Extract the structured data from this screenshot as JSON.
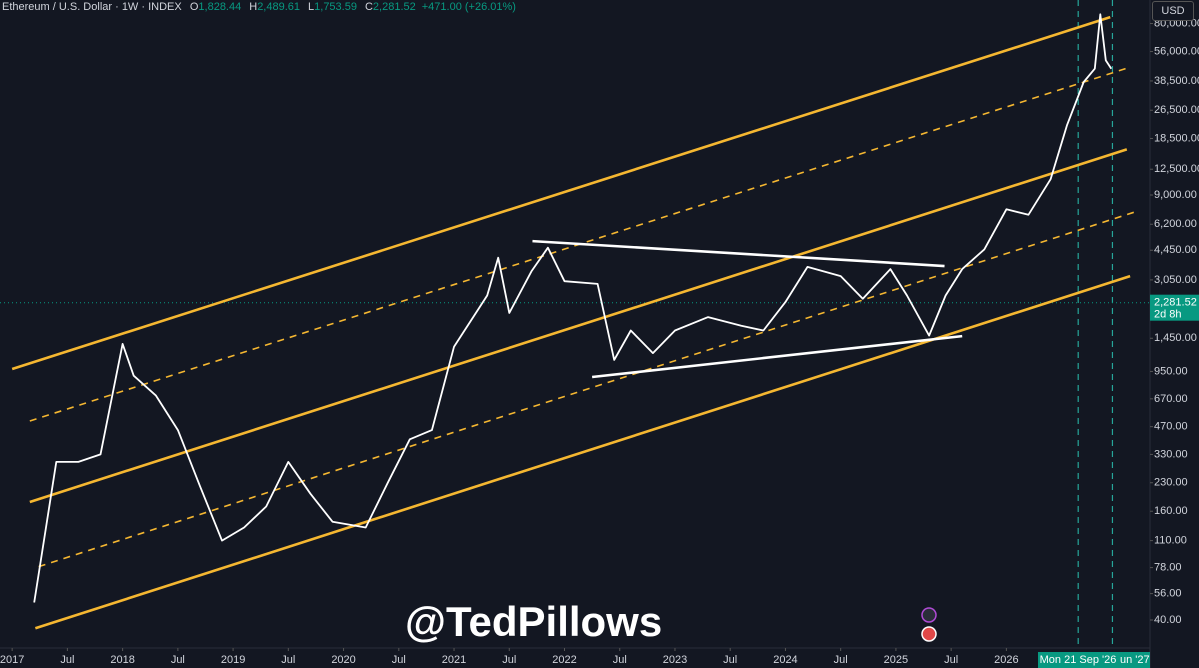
{
  "header": {
    "symbol": "Ethereum / U.S. Dollar · 1W · INDEX",
    "ohlc": [
      {
        "key": "O",
        "value": "1,828.44"
      },
      {
        "key": "H",
        "value": "2,489.61"
      },
      {
        "key": "L",
        "value": "1,753.59"
      },
      {
        "key": "C",
        "value": "2,281.52"
      }
    ],
    "change": "+471.00 (+26.01%)",
    "currency": "USD"
  },
  "watermark": "@TedPillows",
  "chart_data": {
    "type": "line",
    "log_scale": true,
    "ylim": [
      28,
      108000
    ],
    "yticks": [
      {
        "value": 40,
        "label": "40.00"
      },
      {
        "value": 56,
        "label": "56.00"
      },
      {
        "value": 78,
        "label": "78.00"
      },
      {
        "value": 110,
        "label": "110.00"
      },
      {
        "value": 160,
        "label": "160.00"
      },
      {
        "value": 230,
        "label": "230.00"
      },
      {
        "value": 330,
        "label": "330.00"
      },
      {
        "value": 470,
        "label": "470.00"
      },
      {
        "value": 670,
        "label": "670.00"
      },
      {
        "value": 950,
        "label": "950.00"
      },
      {
        "value": 1450,
        "label": "1,450.00"
      },
      {
        "value": 3050,
        "label": "3,050.00"
      },
      {
        "value": 4450,
        "label": "4,450.00"
      },
      {
        "value": 6200,
        "label": "6,200.00"
      },
      {
        "value": 9000,
        "label": "9,000.00"
      },
      {
        "value": 12500,
        "label": "12,500.00"
      },
      {
        "value": 18500,
        "label": "18,500.00"
      },
      {
        "value": 26500,
        "label": "26,500.00"
      },
      {
        "value": 38500,
        "label": "38,500.00"
      },
      {
        "value": 56000,
        "label": "56,000.00"
      },
      {
        "value": 80000,
        "label": "80,000.00"
      }
    ],
    "xlim": [
      2016.89,
      2027.3
    ],
    "xticks": [
      2017,
      {
        "value": 2017.5,
        "label": "Jul"
      },
      2018,
      {
        "value": 2018.5,
        "label": "Jul"
      },
      2019,
      {
        "value": 2019.5,
        "label": "Jul"
      },
      2020,
      {
        "value": 2020.5,
        "label": "Jul"
      },
      2021,
      {
        "value": 2021.5,
        "label": "Jul"
      },
      2022,
      {
        "value": 2022.5,
        "label": "Jul"
      },
      2023,
      {
        "value": 2023.5,
        "label": "Jul"
      },
      2024,
      {
        "value": 2024.5,
        "label": "Jul"
      },
      2025,
      {
        "value": 2025.5,
        "label": "Jul"
      },
      2026
    ],
    "last_price": {
      "value": 2281.52,
      "label": "2,281.52",
      "countdown": "2d 8h"
    },
    "crosshair_labels": [
      "Mon 21 Sep '26",
      "un '27"
    ],
    "series": [
      {
        "color": "#ffffff",
        "x": [
          2017.2,
          2017.4,
          2017.6,
          2017.8,
          2018.0,
          2018.1,
          2018.3,
          2018.5,
          2018.7,
          2018.9,
          2019.1,
          2019.3,
          2019.5,
          2019.7,
          2019.9,
          2020.2,
          2020.4,
          2020.6,
          2020.8,
          2021.0,
          2021.3,
          2021.4,
          2021.5,
          2021.7,
          2021.85,
          2022.0,
          2022.3,
          2022.45,
          2022.6,
          2022.8,
          2023.0,
          2023.3,
          2023.6,
          2023.8,
          2024.0,
          2024.2,
          2024.5,
          2024.7,
          2024.95,
          2025.1,
          2025.3,
          2025.45,
          2025.6,
          2025.8,
          2026.0,
          2026.2,
          2026.4,
          2026.55,
          2026.7,
          2026.8,
          2026.85,
          2026.9,
          2026.95
        ],
        "values": [
          50,
          300,
          300,
          330,
          1350,
          900,
          700,
          450,
          220,
          110,
          130,
          170,
          300,
          200,
          140,
          130,
          230,
          400,
          450,
          1300,
          2500,
          4050,
          2000,
          3400,
          4600,
          3000,
          2900,
          1100,
          1600,
          1200,
          1600,
          1900,
          1700,
          1600,
          2300,
          3600,
          3200,
          2400,
          3500,
          2500,
          1500,
          2500,
          3500,
          4500,
          7500,
          7000,
          11000,
          22000,
          38000,
          45000,
          90000,
          50000,
          45000
        ]
      }
    ],
    "lines": [
      {
        "color": "#f5b731",
        "dash": false,
        "x": [
          2017.0,
          2026.94
        ],
        "values": [
          980,
          86800
        ]
      },
      {
        "color": "#f5b731",
        "dash": true,
        "x": [
          2017.16,
          2027.12
        ],
        "values": [
          505,
          45900
        ]
      },
      {
        "color": "#f5b731",
        "dash": false,
        "x": [
          2017.16,
          2027.09
        ],
        "values": [
          180,
          16100
        ]
      },
      {
        "color": "#f5b731",
        "dash": true,
        "x": [
          2017.24,
          2027.16
        ],
        "values": [
          79,
          7240
        ]
      },
      {
        "color": "#f5b731",
        "dash": false,
        "x": [
          2017.21,
          2027.12
        ],
        "values": [
          36,
          3200
        ]
      },
      {
        "color": "#ffffff",
        "dash": false,
        "x": [
          2021.71,
          2025.44
        ],
        "values": [
          5000,
          3640
        ]
      },
      {
        "color": "#ffffff",
        "dash": false,
        "x": [
          2022.25,
          2025.6
        ],
        "values": [
          885,
          1490
        ]
      }
    ],
    "vlines": [
      2026.65,
      2026.96
    ]
  }
}
